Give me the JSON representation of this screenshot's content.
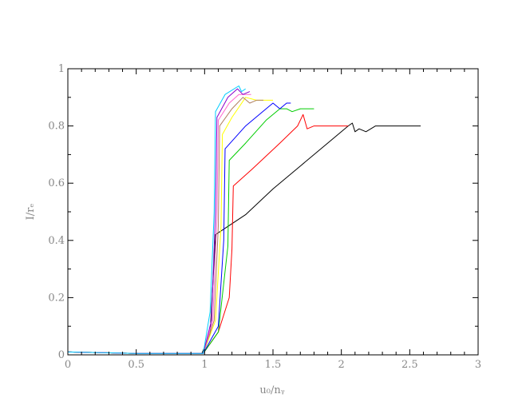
{
  "chart_data": {
    "type": "line",
    "xlabel": "u₀/nᵧ",
    "ylabel": "I/rₑ",
    "xlim": [
      0,
      3
    ],
    "ylim": [
      0,
      1
    ],
    "x_ticks": [
      "0",
      "0.5",
      "1",
      "1.5",
      "2",
      "2.5",
      "3"
    ],
    "y_ticks": [
      "0",
      "0.2",
      "0.4",
      "0.6",
      "0.8",
      "1"
    ],
    "grid": false,
    "series": [
      {
        "color": "#000000",
        "x": [
          0,
          0.5,
          0.98,
          1.04,
          1.08,
          1.3,
          1.5,
          1.7,
          1.9,
          2.05,
          2.08,
          2.1,
          2.13,
          2.18,
          2.25,
          2.58
        ],
        "y": [
          0.01,
          0.005,
          0.005,
          0.07,
          0.42,
          0.49,
          0.58,
          0.66,
          0.74,
          0.8,
          0.81,
          0.78,
          0.79,
          0.78,
          0.8,
          0.8
        ]
      },
      {
        "color": "#ff0000",
        "x": [
          0,
          0.5,
          0.99,
          1.1,
          1.18,
          1.2,
          1.21,
          1.35,
          1.55,
          1.68,
          1.72,
          1.75,
          1.8,
          1.95,
          2.05
        ],
        "y": [
          0.01,
          0.005,
          0.005,
          0.08,
          0.2,
          0.37,
          0.59,
          0.65,
          0.74,
          0.8,
          0.84,
          0.79,
          0.8,
          0.8,
          0.8
        ]
      },
      {
        "color": "#00cc00",
        "x": [
          0,
          0.5,
          0.99,
          1.1,
          1.17,
          1.18,
          1.3,
          1.45,
          1.55,
          1.6,
          1.64,
          1.7,
          1.8
        ],
        "y": [
          0.01,
          0.005,
          0.005,
          0.08,
          0.38,
          0.68,
          0.74,
          0.82,
          0.86,
          0.86,
          0.85,
          0.86,
          0.86
        ]
      },
      {
        "color": "#0000ff",
        "x": [
          0,
          0.5,
          0.99,
          1.1,
          1.14,
          1.15,
          1.3,
          1.45,
          1.5,
          1.55,
          1.6,
          1.63
        ],
        "y": [
          0.01,
          0.005,
          0.005,
          0.1,
          0.4,
          0.72,
          0.8,
          0.86,
          0.88,
          0.86,
          0.88,
          0.88
        ]
      },
      {
        "color": "#ffff00",
        "x": [
          0,
          0.5,
          0.99,
          1.08,
          1.12,
          1.13,
          1.2,
          1.3,
          1.38,
          1.45,
          1.5
        ],
        "y": [
          0.01,
          0.005,
          0.005,
          0.12,
          0.45,
          0.77,
          0.83,
          0.9,
          0.89,
          0.89,
          0.89
        ]
      },
      {
        "color": "#b08060",
        "x": [
          0,
          0.5,
          0.99,
          1.07,
          1.1,
          1.11,
          1.2,
          1.28,
          1.33,
          1.38,
          1.43
        ],
        "y": [
          0.01,
          0.005,
          0.005,
          0.12,
          0.45,
          0.8,
          0.86,
          0.9,
          0.88,
          0.89,
          0.89
        ]
      },
      {
        "color": "#ff66cc",
        "x": [
          0,
          0.5,
          0.99,
          1.06,
          1.09,
          1.1,
          1.18,
          1.25,
          1.3,
          1.34
        ],
        "y": [
          0.01,
          0.005,
          0.005,
          0.12,
          0.48,
          0.82,
          0.88,
          0.91,
          0.91,
          0.91
        ]
      },
      {
        "color": "#8800cc",
        "x": [
          0,
          0.5,
          0.99,
          1.05,
          1.08,
          1.09,
          1.17,
          1.24,
          1.28,
          1.33
        ],
        "y": [
          0.01,
          0.005,
          0.005,
          0.12,
          0.5,
          0.83,
          0.9,
          0.93,
          0.91,
          0.92
        ]
      },
      {
        "color": "#00ccff",
        "x": [
          0,
          0.5,
          0.99,
          1.04,
          1.07,
          1.08,
          1.15,
          1.25,
          1.27,
          1.3
        ],
        "y": [
          0.01,
          0.005,
          0.005,
          0.15,
          0.5,
          0.85,
          0.91,
          0.94,
          0.92,
          0.93
        ]
      }
    ]
  }
}
